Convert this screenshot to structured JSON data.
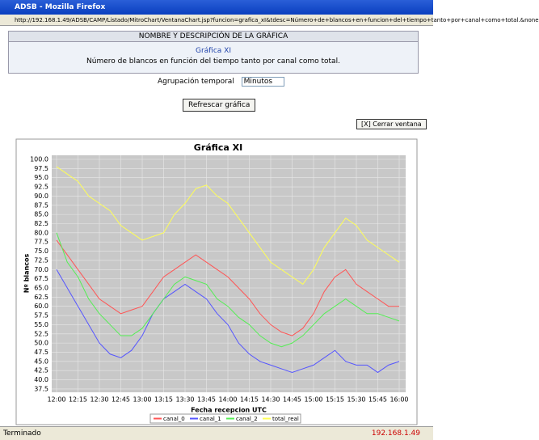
{
  "window": {
    "title": "ADSB - Mozilla Firefox",
    "url": "http://192.168.1.49/ADSB/CAMP/Listado/MitroChart/VentanaChart.jsp?funcion=grafica_xI&tdesc=Número+de+blancos+en+funcion+del+tiempo+tanto+por+canal+como+total.&none",
    "status": "Terminado",
    "status_ip": "192.168.1.49"
  },
  "header": {
    "section": "NOMBRE Y DESCRIPCIÓN DE LA GRÁFICA",
    "name": "Gráfica XI",
    "description": "Número de blancos en función del tiempo tanto por canal como total."
  },
  "controls": {
    "grouping_label": "Agrupación temporal",
    "grouping_value": "Minutos",
    "refresh": "Refrescar gráfica",
    "close": "[X] Cerrar ventana"
  },
  "chart_data": {
    "type": "line",
    "title": "Gráfica XI",
    "y_label": "Nº blancos",
    "x_label": "Fecha recepcion UTC",
    "grid": true,
    "categories": [
      "12:00",
      null,
      "12:15",
      null,
      "12:30",
      null,
      "12:45",
      null,
      "13:00",
      null,
      "13:15",
      null,
      "13:30",
      null,
      "13:45",
      null,
      "14:00",
      null,
      "14:15",
      null,
      "14:30",
      null,
      "14:45",
      null,
      "15:00",
      null,
      "15:15",
      null,
      "15:30",
      null,
      "15:45",
      null,
      "16:00"
    ],
    "ylim": [
      36.6,
      101.1
    ],
    "yticks": [
      {
        "value": 37.5,
        "label": "37.5"
      },
      {
        "value": 40,
        "label": "40.0"
      },
      {
        "value": 42.5,
        "label": "42.5"
      },
      {
        "value": 45,
        "label": "45.0"
      },
      {
        "value": 47.5,
        "label": "47.5"
      },
      {
        "value": 50,
        "label": "50.0"
      },
      {
        "value": 52.5,
        "label": "52.5"
      },
      {
        "value": 55,
        "label": "55.0"
      },
      {
        "value": 57.5,
        "label": "57.5"
      },
      {
        "value": 60,
        "label": "60.0"
      },
      {
        "value": 62.5,
        "label": "62.5"
      },
      {
        "value": 65,
        "label": "65.0"
      },
      {
        "value": 67.5,
        "label": "67.5"
      },
      {
        "value": 70,
        "label": "70.0"
      },
      {
        "value": 72.5,
        "label": "72.5"
      },
      {
        "value": 75,
        "label": "75.0"
      },
      {
        "value": 77.5,
        "label": "77.5"
      },
      {
        "value": 80,
        "label": "80.0"
      },
      {
        "value": 82.5,
        "label": "82.5"
      },
      {
        "value": 85,
        "label": "85.0"
      },
      {
        "value": 87.5,
        "label": "87.5"
      },
      {
        "value": 90,
        "label": "90.0"
      },
      {
        "value": 92.5,
        "label": "92.5"
      },
      {
        "value": 95,
        "label": "95.0"
      },
      {
        "value": 97.5,
        "label": "97.5"
      },
      {
        "value": 100,
        "label": "100.0"
      }
    ],
    "series": [
      {
        "name": "canal_0",
        "color": "#ff5555",
        "values": [
          78,
          74,
          70,
          66,
          62,
          60,
          58,
          59,
          60,
          64,
          68,
          70,
          72,
          74,
          72,
          70,
          68,
          65,
          62,
          58,
          55,
          53,
          52,
          54,
          58,
          64,
          68,
          70,
          66,
          64,
          62,
          60,
          60
        ]
      },
      {
        "name": "canal_1",
        "color": "#5555ff",
        "values": [
          70,
          65,
          60,
          55,
          50,
          47,
          46,
          48,
          52,
          58,
          62,
          64,
          66,
          64,
          62,
          58,
          55,
          50,
          47,
          45,
          44,
          43,
          42,
          43,
          44,
          46,
          48,
          45,
          44,
          44,
          42,
          44,
          45
        ]
      },
      {
        "name": "canal_2",
        "color": "#55ee55",
        "values": [
          80,
          72,
          68,
          62,
          58,
          55,
          52,
          52,
          54,
          58,
          62,
          66,
          68,
          67,
          66,
          62,
          60,
          57,
          55,
          52,
          50,
          49,
          50,
          52,
          55,
          58,
          60,
          62,
          60,
          58,
          58,
          57,
          56
        ]
      },
      {
        "name": "total_real",
        "color": "#ffff55",
        "values": [
          98,
          96,
          94,
          90,
          88,
          86,
          82,
          80,
          78,
          79,
          80,
          85,
          88,
          92,
          93,
          90,
          88,
          84,
          80,
          76,
          72,
          70,
          68,
          66,
          70,
          76,
          80,
          84,
          82,
          78,
          76,
          74,
          72
        ]
      }
    ]
  }
}
